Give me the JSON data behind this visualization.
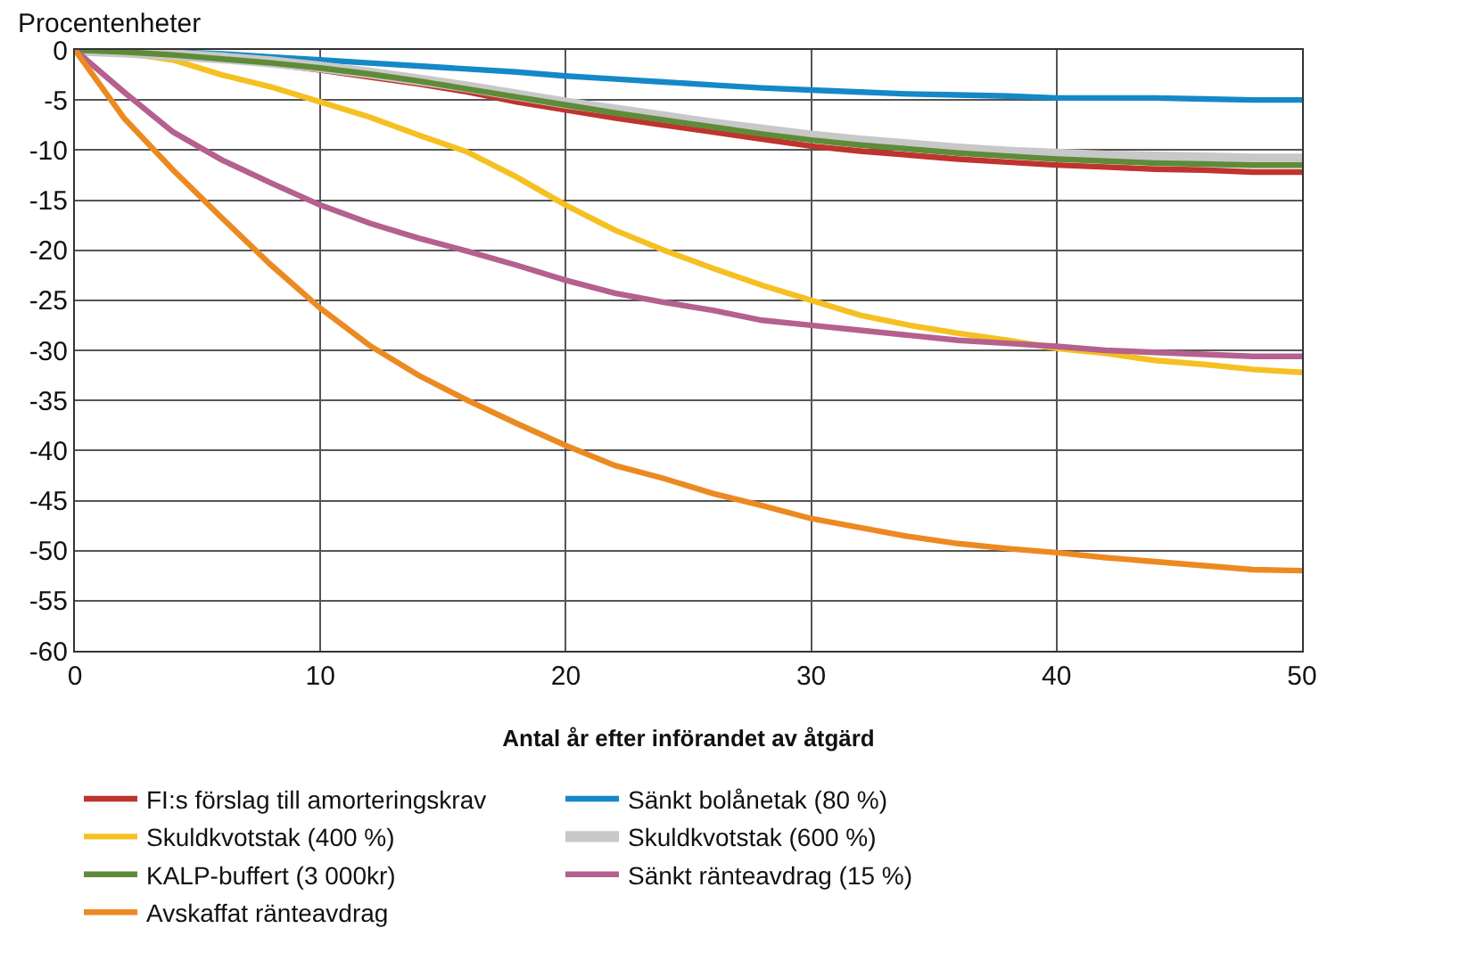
{
  "chart_data": {
    "type": "line",
    "ylabel": "Procentenheter",
    "xlabel": "Antal år efter införandet av åtgärd",
    "x": [
      0,
      2,
      4,
      6,
      8,
      10,
      12,
      14,
      16,
      18,
      20,
      22,
      24,
      26,
      28,
      30,
      32,
      34,
      36,
      38,
      40,
      42,
      44,
      46,
      48,
      50
    ],
    "xlim": [
      0,
      50
    ],
    "xticks": [
      0,
      10,
      20,
      30,
      40,
      50
    ],
    "ylim": [
      -60,
      0
    ],
    "yticks": [
      -60,
      -55,
      -50,
      -45,
      -40,
      -35,
      -30,
      -25,
      -20,
      -15,
      -10,
      -5,
      0
    ],
    "grid": true,
    "legend": "bottom",
    "marker": "none",
    "line_style": "solid",
    "series": [
      {
        "name": "FI:s förslag till amorteringskrav",
        "color": "#c0332e",
        "values": [
          0,
          -0.2,
          -0.5,
          -0.9,
          -1.4,
          -2,
          -2.7,
          -3.4,
          -4.2,
          -5.2,
          -6,
          -6.8,
          -7.5,
          -8.2,
          -8.9,
          -9.6,
          -10.1,
          -10.5,
          -10.9,
          -11.2,
          -11.5,
          -11.7,
          -11.9,
          -12,
          -12.2,
          -12.2
        ]
      },
      {
        "name": "Sänkt bolånetak (80 %)",
        "color": "#1588c8",
        "values": [
          0,
          0,
          -0.2,
          -0.4,
          -0.7,
          -1,
          -1.3,
          -1.6,
          -1.9,
          -2.2,
          -2.6,
          -2.9,
          -3.2,
          -3.5,
          -3.8,
          -4,
          -4.2,
          -4.4,
          -4.5,
          -4.6,
          -4.8,
          -4.8,
          -4.8,
          -4.9,
          -5,
          -5
        ]
      },
      {
        "name": "Skuldkvotstak (400 %)",
        "color": "#f5c021",
        "values": [
          0,
          -0.3,
          -1,
          -2.5,
          -3.7,
          -5.2,
          -6.7,
          -8.5,
          -10.2,
          -12.7,
          -15.5,
          -18,
          -20,
          -21.8,
          -23.5,
          -25,
          -26.5,
          -27.5,
          -28.3,
          -29,
          -29.8,
          -30.3,
          -31,
          -31.4,
          -31.9,
          -32.2
        ]
      },
      {
        "name": "Skuldkvotstak (600 %)",
        "color": "#c8c8c8",
        "values": [
          0,
          -0.2,
          -0.5,
          -0.8,
          -1.2,
          -1.7,
          -2.3,
          -3,
          -3.7,
          -4.5,
          -5.3,
          -6,
          -6.7,
          -7.4,
          -8,
          -8.6,
          -9.1,
          -9.5,
          -9.9,
          -10.2,
          -10.4,
          -10.6,
          -10.7,
          -10.8,
          -10.9,
          -10.9
        ]
      },
      {
        "name": "KALP-buffert (3 000kr)",
        "color": "#5e8b38",
        "values": [
          0,
          -0.2,
          -0.5,
          -0.9,
          -1.3,
          -1.8,
          -2.4,
          -3.1,
          -3.9,
          -4.7,
          -5.5,
          -6.3,
          -7,
          -7.7,
          -8.4,
          -9,
          -9.5,
          -9.9,
          -10.3,
          -10.6,
          -10.9,
          -11.1,
          -11.3,
          -11.4,
          -11.5,
          -11.5
        ]
      },
      {
        "name": "Sänkt ränteavdrag (15 %)",
        "color": "#b5608e",
        "values": [
          0,
          -4.2,
          -8.2,
          -11,
          -13.3,
          -15.5,
          -17.3,
          -18.8,
          -20.1,
          -21.5,
          -23,
          -24.3,
          -25.2,
          -26,
          -27,
          -27.5,
          -28,
          -28.5,
          -29,
          -29.3,
          -29.6,
          -30,
          -30.2,
          -30.4,
          -30.6,
          -30.6
        ]
      },
      {
        "name": "Avskaffat ränteavdrag",
        "color": "#ec8a22",
        "values": [
          0,
          -6.8,
          -12,
          -16.8,
          -21.5,
          -25.8,
          -29.5,
          -32.5,
          -35,
          -37.3,
          -39.5,
          -41.5,
          -42.8,
          -44.3,
          -45.5,
          -46.8,
          -47.7,
          -48.6,
          -49.3,
          -49.8,
          -50.2,
          -50.7,
          -51.1,
          -51.5,
          -51.9,
          -52
        ]
      }
    ]
  }
}
